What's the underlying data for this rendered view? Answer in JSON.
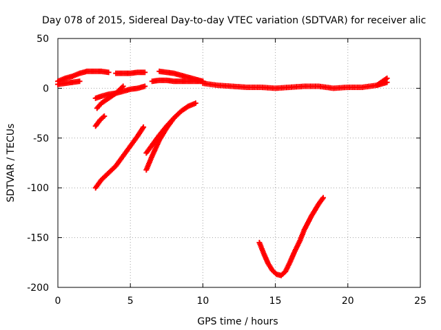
{
  "chart_data": {
    "type": "scatter",
    "title": "Day 078 of 2015, Sidereal Day-to-day VTEC variation (SDTVAR) for receiver alic",
    "xlabel": "GPS time / hours",
    "ylabel": "SDTVAR / TECUs",
    "xlim": [
      0,
      25
    ],
    "ylim": [
      -200,
      50
    ],
    "xticks": [
      0,
      5,
      10,
      15,
      20,
      25
    ],
    "yticks": [
      -200,
      -150,
      -100,
      -50,
      0,
      50
    ],
    "xtick_labels": [
      "0",
      "5",
      "10",
      "15",
      "20",
      "25"
    ],
    "ytick_labels": [
      "-200",
      "-150",
      "-100",
      "-50",
      "0",
      "50"
    ],
    "grid": true,
    "marker": "+",
    "color": "#ff0000",
    "series": [
      {
        "name": "arc-top-1",
        "x": [
          0.0,
          0.5,
          1.0,
          1.5,
          2.0,
          2.5,
          3.0,
          3.5
        ],
        "y": [
          7,
          10,
          12,
          15,
          17,
          17,
          17,
          16
        ]
      },
      {
        "name": "arc-top-1b",
        "x": [
          0.0,
          0.5,
          1.0,
          1.5
        ],
        "y": [
          4,
          5,
          6,
          7
        ]
      },
      {
        "name": "arc-top-2",
        "x": [
          4.0,
          4.5,
          5.0,
          5.5,
          6.0
        ],
        "y": [
          15,
          15,
          15,
          16,
          16
        ]
      },
      {
        "name": "arc-top-3",
        "x": [
          6.5,
          7.0,
          7.5,
          8.0,
          8.5,
          9.0,
          9.5,
          10.0
        ],
        "y": [
          7,
          8,
          8,
          7,
          7,
          7,
          7,
          7
        ]
      },
      {
        "name": "arc-top-4",
        "x": [
          7.0,
          7.5,
          8.0,
          8.5,
          9.0,
          9.5,
          10.0
        ],
        "y": [
          17,
          16,
          15,
          13,
          11,
          9,
          7
        ]
      },
      {
        "name": "arc-mid",
        "x": [
          10.0,
          11.0,
          12.0,
          13.0,
          14.0,
          15.0,
          16.0,
          17.0,
          18.0,
          19.0,
          20.0,
          21.0,
          22.0,
          22.7
        ],
        "y": [
          5,
          3,
          2,
          1,
          1,
          0,
          1,
          2,
          2,
          0,
          1,
          1,
          3,
          6
        ]
      },
      {
        "name": "arc-end",
        "x": [
          22.0,
          22.3,
          22.7
        ],
        "y": [
          3,
          6,
          10
        ]
      },
      {
        "name": "arc-neg-small-1",
        "x": [
          2.6,
          3.0,
          3.5,
          4.0,
          4.5,
          5.0,
          5.5,
          6.0
        ],
        "y": [
          -10,
          -8,
          -6,
          -5,
          -3,
          -1,
          0,
          2
        ]
      },
      {
        "name": "arc-neg-small-2",
        "x": [
          2.7,
          3.0,
          3.5,
          4.0,
          4.5
        ],
        "y": [
          -20,
          -15,
          -10,
          -5,
          2
        ]
      },
      {
        "name": "arc-neg-steep",
        "x": [
          2.6,
          2.9,
          3.2
        ],
        "y": [
          -38,
          -32,
          -28
        ]
      },
      {
        "name": "arc-100",
        "x": [
          2.6,
          3.0,
          3.5,
          4.0,
          4.5,
          5.0,
          5.5,
          5.9
        ],
        "y": [
          -100,
          -92,
          -85,
          -78,
          -68,
          -58,
          -48,
          -39
        ]
      },
      {
        "name": "arc-82",
        "x": [
          6.1,
          6.5,
          7.0,
          7.5,
          8.0,
          8.5,
          9.0,
          9.5
        ],
        "y": [
          -82,
          -68,
          -52,
          -40,
          -30,
          -23,
          -18,
          -15
        ]
      },
      {
        "name": "arc-65",
        "x": [
          6.1,
          6.5,
          7.0,
          7.5,
          8.0
        ],
        "y": [
          -65,
          -57,
          -47,
          -38,
          -30
        ]
      },
      {
        "name": "arc-dip",
        "x": [
          13.9,
          14.2,
          14.5,
          14.8,
          15.1,
          15.4,
          15.7,
          16.0,
          16.3,
          16.7,
          17.0,
          17.5,
          18.0,
          18.3
        ],
        "y": [
          -155,
          -166,
          -176,
          -183,
          -187,
          -188,
          -184,
          -175,
          -165,
          -153,
          -142,
          -128,
          -116,
          -110
        ]
      }
    ]
  }
}
